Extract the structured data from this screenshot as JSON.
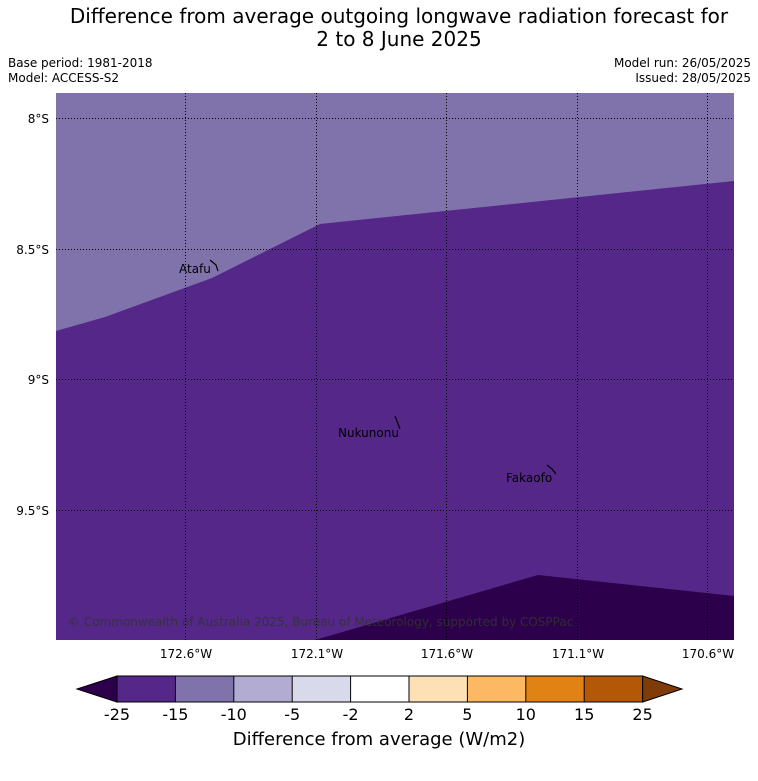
{
  "title_line1": "Difference from average outgoing longwave radiation forecast for",
  "title_line2": "2 to 8 June 2025",
  "base_period": "Base period: 1981-2018",
  "model": "Model: ACCESS-S2",
  "model_run": "Model run: 26/05/2025",
  "issued": "Issued: 28/05/2025",
  "lat_labels": [
    "8°S",
    "8.5°S",
    "9°S",
    "9.5°S"
  ],
  "lon_labels": [
    "172.6°W",
    "172.1°W",
    "171.6°W",
    "171.1°W",
    "170.6°W"
  ],
  "places": [
    "Atafu",
    "Nukunonu",
    "Fakaofo"
  ],
  "copyright": "© Commonwealth of Australia 2025, Bureau of Meteorology, supported by COSPPac",
  "colorbar": {
    "ticks": [
      "-25",
      "-15",
      "-10",
      "-5",
      "-2",
      "2",
      "5",
      "10",
      "15",
      "25"
    ],
    "colors": [
      "#2d004b",
      "#542788",
      "#8073ac",
      "#b2abd2",
      "#d8daeb",
      "#ffffff",
      "#fee0b6",
      "#fdb863",
      "#e08214",
      "#b35806",
      "#7f3b08"
    ],
    "label": "Difference from average (W/m2)"
  },
  "map_colors": {
    "band_-15_-10": "#8073ac",
    "band_-25_-15": "#542788",
    "band_below_-25": "#2d004b"
  }
}
